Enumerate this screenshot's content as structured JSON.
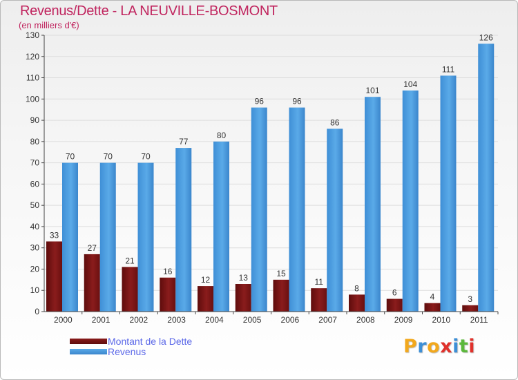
{
  "chart_data": {
    "type": "bar",
    "title": "Revenus/Dette - LA NEUVILLE-BOSMONT",
    "subtitle": "(en milliers d'€)",
    "xlabel": "",
    "ylabel": "",
    "categories": [
      "2000",
      "2001",
      "2002",
      "2003",
      "2004",
      "2005",
      "2006",
      "2007",
      "2008",
      "2009",
      "2010",
      "2011"
    ],
    "series": [
      {
        "name": "Montant de la Dette",
        "values": [
          33,
          27,
          21,
          16,
          12,
          13,
          15,
          11,
          8,
          6,
          4,
          3
        ],
        "color": "#7a1414"
      },
      {
        "name": "Revenus",
        "values": [
          70,
          70,
          70,
          77,
          80,
          96,
          96,
          86,
          101,
          104,
          111,
          126
        ],
        "color": "#4a9be0"
      }
    ],
    "ylim": [
      0,
      130
    ],
    "yticks": [
      0,
      10,
      20,
      30,
      40,
      50,
      60,
      70,
      80,
      90,
      100,
      110,
      120,
      130
    ],
    "grid": true,
    "data_labels": true,
    "legend_position": "bottom-left"
  },
  "logo": {
    "text": "Proxiti",
    "letters": [
      "P",
      "r",
      "o",
      "x",
      "i",
      "t",
      "i"
    ],
    "colors": [
      "#f2a81d",
      "#3d8fd6",
      "#f2a81d",
      "#e0312b",
      "#3d8fd6",
      "#5cb83c",
      "#e0312b"
    ]
  },
  "colors": {
    "title": "#c0245e",
    "legend_text": "#5a67e8",
    "axis": "#444444",
    "grid": "#dddddd"
  }
}
